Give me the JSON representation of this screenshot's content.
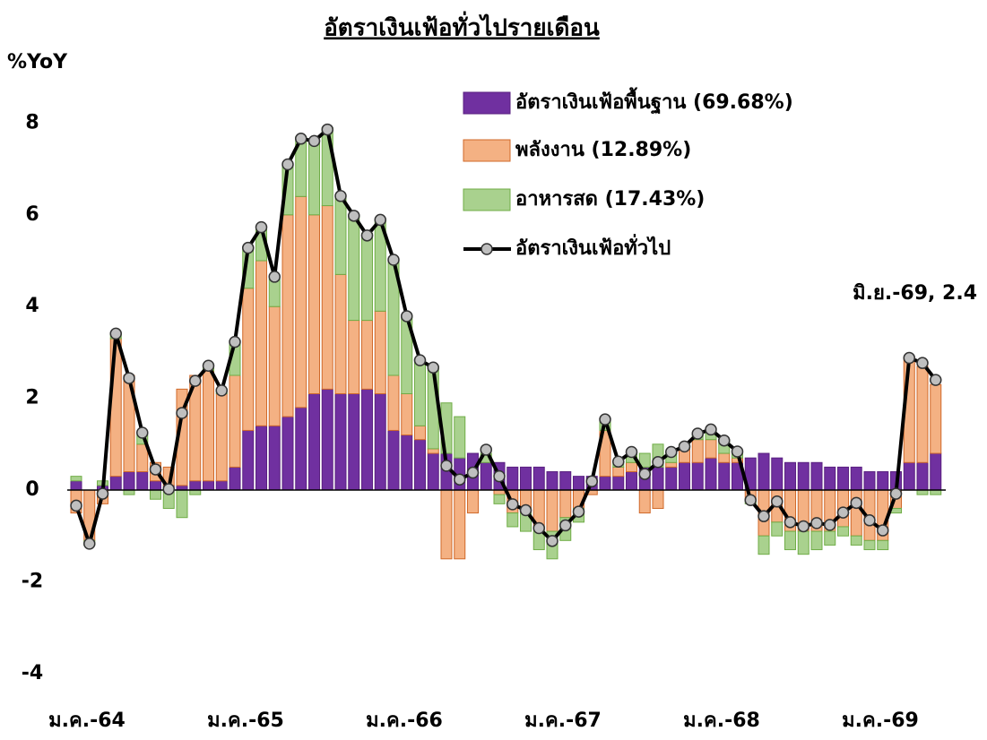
{
  "chart_data": {
    "type": "bar",
    "title": "อัตราเงินเฟ้อทั่วไปรายเดือน",
    "y_label": "%YoY",
    "annotation": "มิ.ย.-69, 2.4",
    "categories": [
      "ม.ค.-64",
      null,
      null,
      null,
      null,
      null,
      null,
      null,
      null,
      null,
      null,
      null,
      "ม.ค.-65",
      null,
      null,
      null,
      null,
      null,
      null,
      null,
      null,
      null,
      null,
      null,
      "ม.ค.-66",
      null,
      null,
      null,
      null,
      null,
      null,
      null,
      null,
      null,
      null,
      null,
      "ม.ค.-67",
      null,
      null,
      null,
      null,
      null,
      null,
      null,
      null,
      null,
      null,
      null,
      "ม.ค.-68",
      null,
      null,
      null,
      null,
      null,
      null,
      null,
      null,
      null,
      null,
      null,
      "ม.ค.-69",
      null,
      null,
      null,
      null,
      null
    ],
    "series": [
      {
        "name": "อัตราเงินเฟ้อพื้นฐาน (69.68%)",
        "color": "#7030a0",
        "stroke": "#5a2080",
        "values": [
          0.2,
          0.0,
          0.1,
          0.3,
          0.4,
          0.4,
          0.2,
          0.1,
          0.1,
          0.2,
          0.2,
          0.2,
          0.5,
          1.3,
          1.4,
          1.4,
          1.6,
          1.8,
          2.1,
          2.2,
          2.1,
          2.1,
          2.2,
          2.1,
          1.3,
          1.2,
          1.1,
          0.8,
          0.8,
          0.7,
          0.8,
          0.6,
          0.6,
          0.5,
          0.5,
          0.5,
          0.4,
          0.4,
          0.3,
          0.3,
          0.3,
          0.3,
          0.4,
          0.5,
          0.5,
          0.5,
          0.6,
          0.6,
          0.7,
          0.6,
          0.6,
          0.7,
          0.8,
          0.7,
          0.6,
          0.6,
          0.6,
          0.5,
          0.5,
          0.5,
          0.4,
          0.4,
          0.4,
          0.6,
          0.6,
          0.8
        ]
      },
      {
        "name": "พลังงาน (12.89%)",
        "color": "#f4b183",
        "stroke": "#d0692a",
        "values": [
          -0.5,
          -1.1,
          -0.3,
          3.0,
          2.1,
          0.6,
          0.4,
          0.4,
          2.1,
          2.3,
          2.4,
          1.9,
          2.0,
          3.1,
          3.6,
          2.6,
          4.4,
          4.6,
          3.9,
          4.0,
          2.6,
          1.6,
          1.5,
          1.8,
          1.2,
          0.9,
          0.3,
          0.1,
          -1.5,
          -1.5,
          -0.5,
          0.0,
          -0.1,
          -0.5,
          -0.5,
          -0.8,
          -0.9,
          -0.6,
          -0.4,
          -0.1,
          1.0,
          0.2,
          0.2,
          -0.5,
          -0.4,
          0.1,
          0.3,
          0.5,
          0.4,
          0.2,
          0.1,
          -0.2,
          -1.0,
          -0.7,
          -0.9,
          -0.9,
          -0.9,
          -0.9,
          -0.8,
          -1.0,
          -1.1,
          -1.1,
          -0.4,
          2.3,
          2.1,
          1.5
        ]
      },
      {
        "name": "อาหารสด (17.43%)",
        "color": "#a9d18e",
        "stroke": "#70ad47",
        "values": [
          0.1,
          -0.1,
          0.1,
          0.1,
          -0.1,
          0.2,
          -0.2,
          -0.4,
          -0.6,
          -0.1,
          0.1,
          0.1,
          0.7,
          0.9,
          0.7,
          0.6,
          1.1,
          1.3,
          1.6,
          1.7,
          1.7,
          2.3,
          1.9,
          2.0,
          2.5,
          1.7,
          1.4,
          1.8,
          1.1,
          0.9,
          0.0,
          0.2,
          -0.2,
          -0.3,
          -0.4,
          -0.5,
          -0.6,
          -0.5,
          -0.3,
          0.0,
          0.2,
          0.1,
          0.2,
          0.3,
          0.5,
          0.2,
          0.1,
          0.1,
          0.2,
          0.3,
          0.1,
          -0.1,
          -0.4,
          -0.3,
          -0.4,
          -0.5,
          -0.4,
          -0.3,
          -0.2,
          -0.2,
          -0.2,
          -0.2,
          -0.1,
          0.0,
          -0.1,
          -0.1
        ]
      },
      {
        "name": "อัตราเงินเฟ้อทั่วไป",
        "type": "line",
        "color": "#000000",
        "marker_color": "#bfbfbf",
        "values": [
          -0.34,
          -1.17,
          -0.08,
          3.41,
          2.44,
          1.25,
          0.45,
          0.02,
          1.68,
          2.38,
          2.71,
          2.17,
          3.23,
          5.28,
          5.73,
          4.65,
          7.1,
          7.66,
          7.61,
          7.86,
          6.41,
          5.98,
          5.55,
          5.89,
          5.02,
          3.79,
          2.83,
          2.67,
          0.53,
          0.23,
          0.38,
          0.88,
          0.3,
          -0.31,
          -0.44,
          -0.83,
          -1.11,
          -0.77,
          -0.47,
          0.19,
          1.54,
          0.62,
          0.83,
          0.35,
          0.61,
          0.83,
          0.95,
          1.23,
          1.32,
          1.08,
          0.84,
          -0.22,
          -0.57,
          -0.25,
          -0.7,
          -0.79,
          -0.72,
          -0.76,
          -0.49,
          -0.28,
          -0.66,
          -0.88,
          -0.08,
          2.88,
          2.77,
          2.4
        ]
      }
    ],
    "ylim": [
      -4,
      8
    ],
    "yticks": [
      -4,
      -2,
      0,
      2,
      4,
      6,
      8
    ]
  }
}
